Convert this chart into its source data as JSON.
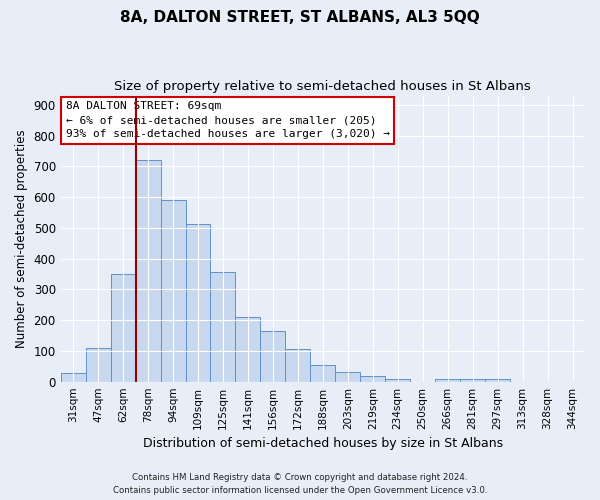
{
  "title": "8A, DALTON STREET, ST ALBANS, AL3 5QQ",
  "subtitle": "Size of property relative to semi-detached houses in St Albans",
  "xlabel": "Distribution of semi-detached houses by size in St Albans",
  "ylabel": "Number of semi-detached properties",
  "bar_labels": [
    "31sqm",
    "47sqm",
    "62sqm",
    "78sqm",
    "94sqm",
    "109sqm",
    "125sqm",
    "141sqm",
    "156sqm",
    "172sqm",
    "188sqm",
    "203sqm",
    "219sqm",
    "234sqm",
    "250sqm",
    "266sqm",
    "281sqm",
    "297sqm",
    "313sqm",
    "328sqm",
    "344sqm"
  ],
  "bar_values": [
    28,
    108,
    350,
    720,
    592,
    513,
    355,
    210,
    165,
    105,
    55,
    33,
    17,
    10,
    0,
    10,
    10,
    8,
    0,
    0,
    0
  ],
  "bar_color": "#c8d8ee",
  "bar_edgecolor": "#6090c8",
  "ylim": [
    0,
    930
  ],
  "yticks": [
    0,
    100,
    200,
    300,
    400,
    500,
    600,
    700,
    800,
    900
  ],
  "vline_color": "#990000",
  "box_text_line1": "8A DALTON STREET: 69sqm",
  "box_text_line2": "← 6% of semi-detached houses are smaller (205)",
  "box_text_line3": "93% of semi-detached houses are larger (3,020) →",
  "box_color": "#ffffff",
  "box_edgecolor": "#cc0000",
  "footer1": "Contains HM Land Registry data © Crown copyright and database right 2024.",
  "footer2": "Contains public sector information licensed under the Open Government Licence v3.0.",
  "bg_color": "#e8eef8",
  "grid_color": "#ffffff",
  "title_fontsize": 11,
  "subtitle_fontsize": 9.5,
  "ylabel_fontsize": 8.5,
  "xlabel_fontsize": 9
}
